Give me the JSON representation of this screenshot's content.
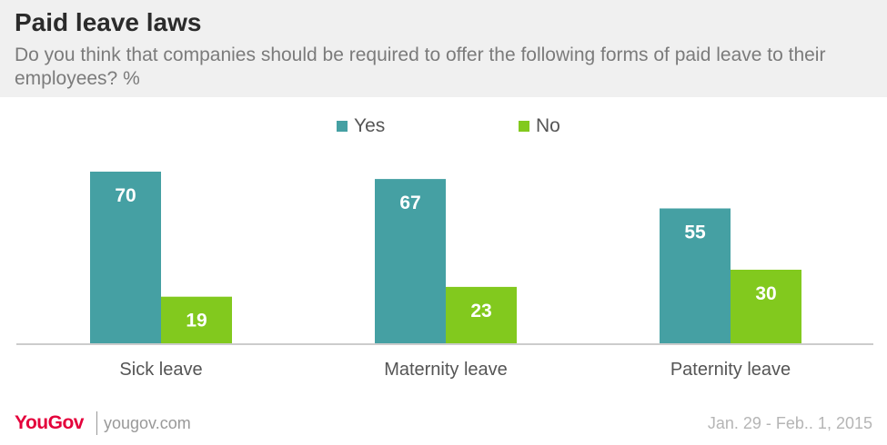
{
  "header": {
    "title": "Paid leave laws",
    "subtitle": "Do you think that companies should be required to offer the following forms of paid leave to their employees? %"
  },
  "legend": [
    {
      "label": "Yes",
      "color": "#45a0a3"
    },
    {
      "label": "No",
      "color": "#82c91e"
    }
  ],
  "footer": {
    "logo": "YouGov",
    "url": "yougov.com",
    "date": "Jan. 29 - Feb.. 1, 2015"
  },
  "chart_data": {
    "type": "bar",
    "title": "Paid leave laws",
    "subtitle": "Do you think that companies should be required to offer the following forms of paid leave to their employees? %",
    "categories": [
      "Sick leave",
      "Maternity leave",
      "Paternity leave"
    ],
    "series": [
      {
        "name": "Yes",
        "values": [
          70,
          67,
          55
        ],
        "color": "#45a0a3"
      },
      {
        "name": "No",
        "values": [
          19,
          23,
          30
        ],
        "color": "#82c91e"
      }
    ],
    "ylim": [
      0,
      70
    ],
    "grid": false,
    "legend": "top-center",
    "data_labels": true
  }
}
